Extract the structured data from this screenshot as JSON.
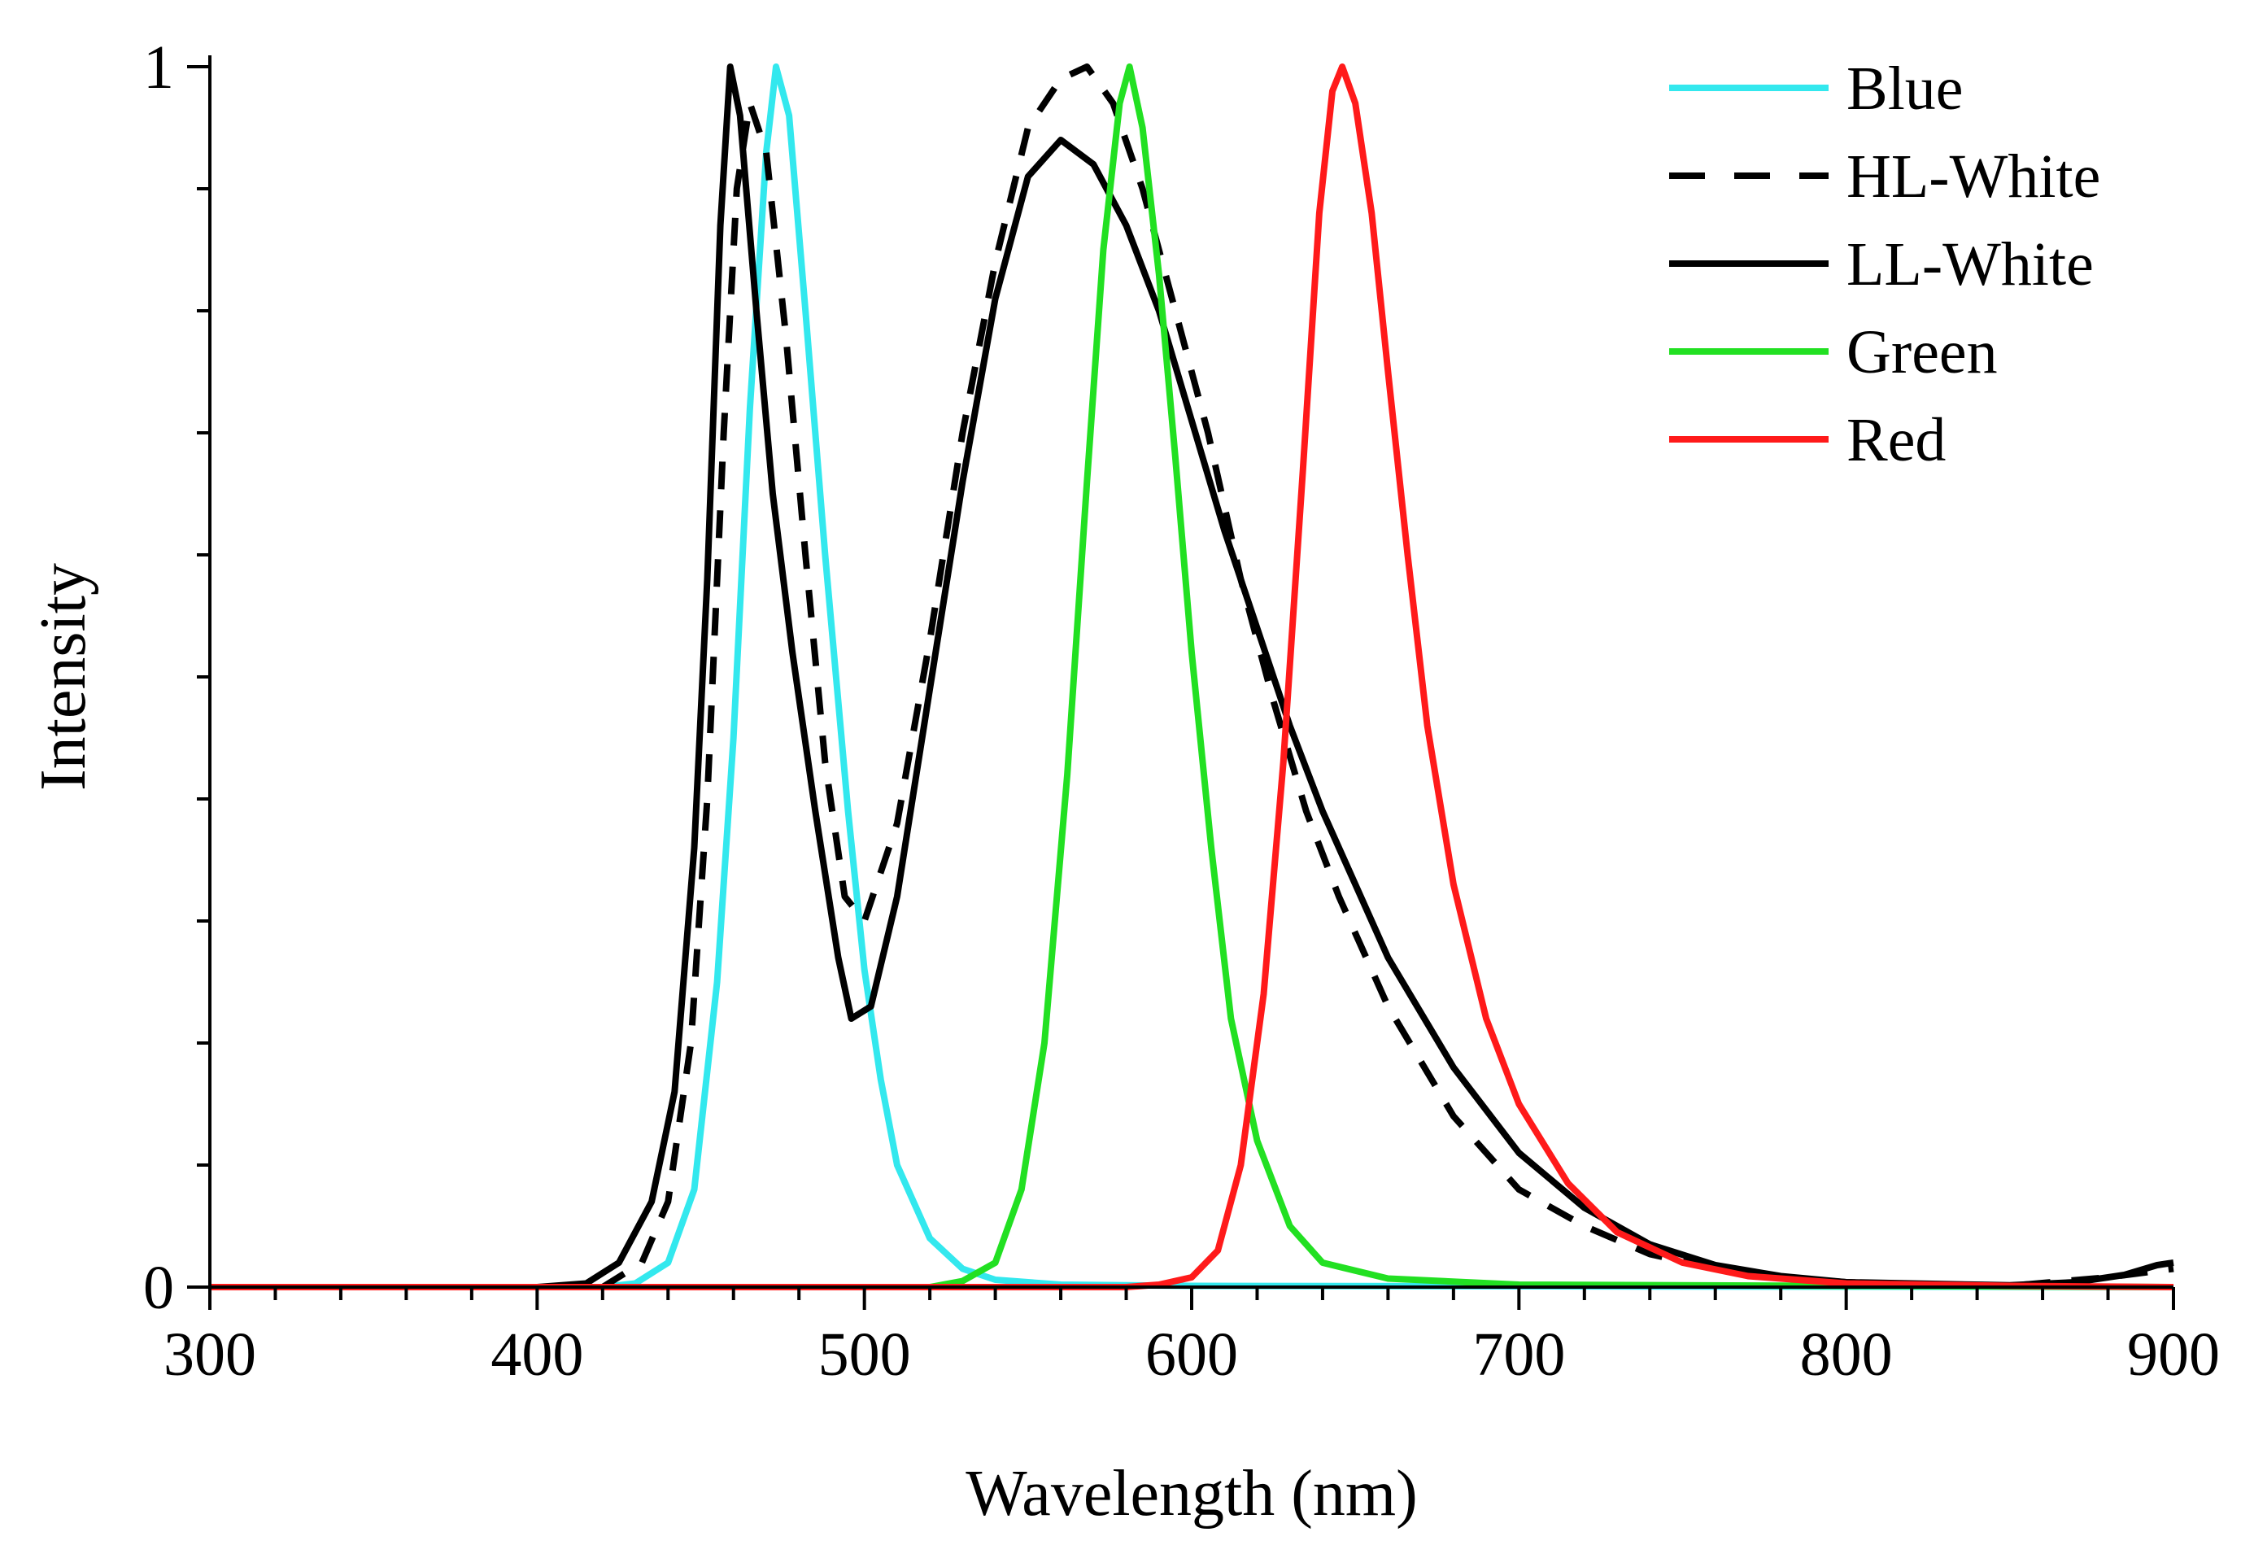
{
  "chart_data": {
    "type": "line",
    "title": "",
    "xlabel": "Wavelength (nm)",
    "ylabel": "Intensity",
    "xlim": [
      300,
      900
    ],
    "ylim": [
      0,
      1
    ],
    "x_ticks": [
      "300",
      "400",
      "500",
      "600",
      "700",
      "800",
      "900"
    ],
    "x_tick_values": [
      300,
      400,
      500,
      600,
      700,
      800,
      900
    ],
    "y_ticks": [
      "0",
      "1"
    ],
    "y_tick_values": [
      0,
      1
    ],
    "legend_position": "top-right",
    "series": [
      {
        "name": "Blue",
        "color": "#33E8EE",
        "style": "solid",
        "points": [
          [
            300,
            0
          ],
          [
            420,
            0
          ],
          [
            430,
            0.003
          ],
          [
            440,
            0.02
          ],
          [
            448,
            0.08
          ],
          [
            455,
            0.25
          ],
          [
            460,
            0.45
          ],
          [
            465,
            0.72
          ],
          [
            470,
            0.93
          ],
          [
            473,
            1.0
          ],
          [
            477,
            0.96
          ],
          [
            482,
            0.8
          ],
          [
            488,
            0.6
          ],
          [
            495,
            0.39
          ],
          [
            500,
            0.26
          ],
          [
            505,
            0.17
          ],
          [
            510,
            0.1
          ],
          [
            520,
            0.04
          ],
          [
            530,
            0.015
          ],
          [
            540,
            0.006
          ],
          [
            560,
            0.002
          ],
          [
            600,
            0.001
          ],
          [
            900,
            0
          ]
        ]
      },
      {
        "name": "HL-White",
        "color": "#000000",
        "style": "dashed",
        "points": [
          [
            300,
            0
          ],
          [
            420,
            0
          ],
          [
            432,
            0.02
          ],
          [
            440,
            0.07
          ],
          [
            447,
            0.2
          ],
          [
            452,
            0.4
          ],
          [
            457,
            0.7
          ],
          [
            461,
            0.9
          ],
          [
            465,
            0.97
          ],
          [
            470,
            0.93
          ],
          [
            476,
            0.78
          ],
          [
            482,
            0.6
          ],
          [
            488,
            0.43
          ],
          [
            494,
            0.32
          ],
          [
            500,
            0.3
          ],
          [
            510,
            0.38
          ],
          [
            520,
            0.53
          ],
          [
            530,
            0.7
          ],
          [
            540,
            0.84
          ],
          [
            550,
            0.95
          ],
          [
            560,
            0.99
          ],
          [
            568,
            1.0
          ],
          [
            576,
            0.97
          ],
          [
            585,
            0.9
          ],
          [
            595,
            0.8
          ],
          [
            605,
            0.7
          ],
          [
            615,
            0.58
          ],
          [
            625,
            0.48
          ],
          [
            635,
            0.39
          ],
          [
            645,
            0.32
          ],
          [
            660,
            0.23
          ],
          [
            680,
            0.14
          ],
          [
            700,
            0.08
          ],
          [
            720,
            0.05
          ],
          [
            740,
            0.027
          ],
          [
            760,
            0.015
          ],
          [
            780,
            0.008
          ],
          [
            800,
            0.004
          ],
          [
            820,
            0.002
          ],
          [
            850,
            0.001
          ],
          [
            880,
            0.008
          ],
          [
            900,
            0.015
          ]
        ]
      },
      {
        "name": "LL-White",
        "color": "#000000",
        "style": "solid",
        "points": [
          [
            300,
            0
          ],
          [
            400,
            0
          ],
          [
            415,
            0.003
          ],
          [
            425,
            0.02
          ],
          [
            435,
            0.07
          ],
          [
            442,
            0.16
          ],
          [
            448,
            0.36
          ],
          [
            452,
            0.58
          ],
          [
            456,
            0.87
          ],
          [
            459,
            1.0
          ],
          [
            462,
            0.96
          ],
          [
            467,
            0.8
          ],
          [
            472,
            0.65
          ],
          [
            478,
            0.52
          ],
          [
            485,
            0.39
          ],
          [
            492,
            0.27
          ],
          [
            496,
            0.22
          ],
          [
            502,
            0.23
          ],
          [
            510,
            0.32
          ],
          [
            520,
            0.49
          ],
          [
            530,
            0.66
          ],
          [
            540,
            0.81
          ],
          [
            550,
            0.91
          ],
          [
            560,
            0.94
          ],
          [
            570,
            0.92
          ],
          [
            580,
            0.87
          ],
          [
            590,
            0.8
          ],
          [
            600,
            0.71
          ],
          [
            610,
            0.62
          ],
          [
            620,
            0.54
          ],
          [
            630,
            0.46
          ],
          [
            640,
            0.39
          ],
          [
            650,
            0.33
          ],
          [
            660,
            0.27
          ],
          [
            680,
            0.18
          ],
          [
            700,
            0.11
          ],
          [
            720,
            0.065
          ],
          [
            740,
            0.035
          ],
          [
            760,
            0.018
          ],
          [
            780,
            0.009
          ],
          [
            800,
            0.004
          ],
          [
            850,
            0.0015
          ],
          [
            870,
            0.004
          ],
          [
            885,
            0.01
          ],
          [
            895,
            0.018
          ],
          [
            900,
            0.02
          ]
        ]
      },
      {
        "name": "Green",
        "color": "#22E022",
        "style": "solid",
        "points": [
          [
            300,
            0
          ],
          [
            520,
            0
          ],
          [
            530,
            0.005
          ],
          [
            540,
            0.02
          ],
          [
            548,
            0.08
          ],
          [
            555,
            0.2
          ],
          [
            562,
            0.42
          ],
          [
            568,
            0.66
          ],
          [
            573,
            0.85
          ],
          [
            578,
            0.97
          ],
          [
            581,
            1.0
          ],
          [
            585,
            0.95
          ],
          [
            590,
            0.83
          ],
          [
            595,
            0.68
          ],
          [
            600,
            0.52
          ],
          [
            606,
            0.36
          ],
          [
            612,
            0.22
          ],
          [
            620,
            0.12
          ],
          [
            630,
            0.05
          ],
          [
            640,
            0.02
          ],
          [
            660,
            0.007
          ],
          [
            700,
            0.002
          ],
          [
            900,
            0
          ]
        ]
      },
      {
        "name": "Red",
        "color": "#FF1A1A",
        "style": "solid",
        "points": [
          [
            300,
            0
          ],
          [
            580,
            0
          ],
          [
            590,
            0.002
          ],
          [
            600,
            0.008
          ],
          [
            608,
            0.03
          ],
          [
            615,
            0.1
          ],
          [
            622,
            0.24
          ],
          [
            628,
            0.43
          ],
          [
            634,
            0.67
          ],
          [
            639,
            0.88
          ],
          [
            643,
            0.98
          ],
          [
            646,
            1.0
          ],
          [
            650,
            0.97
          ],
          [
            655,
            0.88
          ],
          [
            660,
            0.75
          ],
          [
            666,
            0.6
          ],
          [
            672,
            0.46
          ],
          [
            680,
            0.33
          ],
          [
            690,
            0.22
          ],
          [
            700,
            0.15
          ],
          [
            715,
            0.085
          ],
          [
            730,
            0.045
          ],
          [
            750,
            0.02
          ],
          [
            770,
            0.009
          ],
          [
            800,
            0.003
          ],
          [
            850,
            0.001
          ],
          [
            900,
            0
          ]
        ]
      }
    ]
  }
}
